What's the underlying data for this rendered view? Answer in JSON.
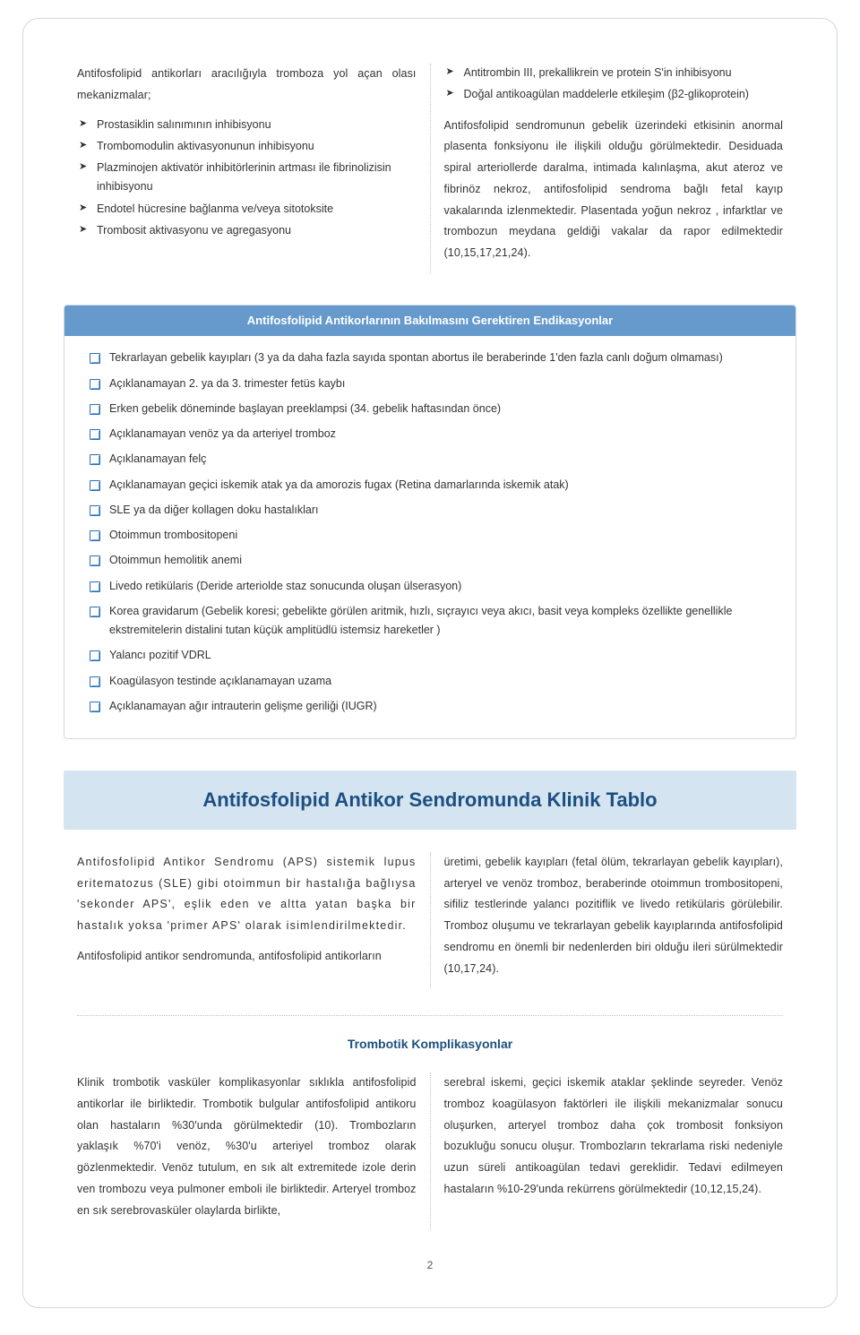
{
  "colors": {
    "border": "#cfd8e3",
    "header_bg": "#6699cc",
    "header_text": "#ffffff",
    "section_bg": "#d4e4f1",
    "section_text": "#1c4f80",
    "body_text": "#333333",
    "bullet_border": "#2a6fb5"
  },
  "top": {
    "left": {
      "intro": "Antifosfolipid antikorları aracılığıyla tromboza yol açan olası mekanizmalar;",
      "items": [
        "Prostasiklin salınımının inhibisyonu",
        "Trombomodulin aktivasyonunun inhibisyonu",
        "Plazminojen aktivatör inhibitörlerinin artması ile fibrinolizisin inhibisyonu",
        "Endotel hücresine bağlanma ve/veya sitotoksite",
        "Trombosit aktivasyonu ve agregasyonu"
      ]
    },
    "right": {
      "items": [
        "Antitrombin III, prekallikrein ve protein S'in inhibisyonu",
        "Doğal antikoagülan maddelerle etkileşim (β2-glikoprotein)"
      ],
      "para": "Antifosfolipid sendromunun gebelik üzerindeki etkisinin anormal plasenta fonksiyonu ile ilişkili olduğu görülmektedir. Desiduada spiral arteriollerde daralma, intimada kalınlaşma, akut ateroz ve fibrinöz nekroz, antifosfolipid sendroma bağlı fetal kayıp vakalarında izlenmektedir. Plasentada yoğun nekroz , infarktlar ve trombozun meydana geldiği vakalar da rapor edilmektedir (10,15,17,21,24)."
    }
  },
  "box": {
    "title": "Antifosfolipid Antikorlarının Bakılmasını Gerektiren Endikasyonlar",
    "items": [
      "Tekrarlayan gebelik kayıpları (3 ya da daha fazla sayıda spontan abortus ile beraberinde 1'den fazla canlı doğum olmaması)",
      "Açıklanamayan 2. ya da 3. trimester fetüs kaybı",
      "Erken gebelik döneminde başlayan preeklampsi (34. gebelik haftasından önce)",
      "Açıklanamayan venöz ya da arteriyel tromboz",
      "Açıklanamayan felç",
      "Açıklanamayan geçici iskemik atak ya da amorozis fugax (Retina damarlarında iskemik atak)",
      "SLE ya da diğer kollagen doku hastalıkları",
      "Otoimmun trombositopeni",
      "Otoimmun hemolitik anemi",
      "Livedo retikülaris (Deride arteriolde staz sonucunda oluşan ülserasyon)",
      "Korea gravidarum (Gebelik koresi; gebelikte görülen aritmik, hızlı, sıçrayıcı veya akıcı, basit veya kompleks özellikte genellikle ekstremitelerin distalini tutan küçük amplitüdlü istemsiz hareketler )",
      "Yalancı pozitif VDRL",
      "Koagülasyon testinde açıklanamayan uzama",
      "Açıklanamayan ağır intrauterin gelişme geriliği (IUGR)"
    ]
  },
  "section": {
    "title": "Antifosfolipid Antikor Sendromunda Klinik Tablo",
    "left_p1": "Antifosfolipid Antikor Sendromu (APS) sistemik lupus eritematozus (SLE) gibi otoimmun bir hastalığa bağlıysa 'sekonder APS', eşlik eden ve altta yatan başka bir hastalık yoksa 'primer APS' olarak isimlendirilmektedir.",
    "left_p2": "Antifosfolipid antikor sendromunda, antifosfolipid antikorların",
    "right_p1": "üretimi, gebelik kayıpları (fetal ölüm, tekrarlayan gebelik kayıpları), arteryel ve venöz tromboz, beraberinde otoimmun trombositopeni, sifiliz testlerinde yalancı pozitiflik ve livedo retikülaris görülebilir. Tromboz oluşumu ve tekrarlayan gebelik kayıplarında antifosfolipid sendromu en önemli bir nedenlerden biri olduğu ileri sürülmektedir (10,17,24)."
  },
  "sub": {
    "title": "Trombotik Komplikasyonlar",
    "left": "Klinik trombotik vasküler komplikasyonlar sıklıkla antifosfolipid antikorlar ile birliktedir. Trombotik bulgular antifosfolipid antikoru olan hastaların %30'unda görülmektedir (10). Trombozların yaklaşık %70'i venöz, %30'u arteriyel tromboz olarak gözlenmektedir. Venöz tutulum, en sık alt extremitede izole derin ven trombozu veya pulmoner emboli ile birliktedir. Arteryel tromboz en sık serebrovasküler olaylarda birlikte,",
    "right": "serebral iskemi, geçici iskemik ataklar şeklinde seyreder. Venöz tromboz koagülasyon faktörleri ile ilişkili mekanizmalar sonucu oluşurken, arteryel tromboz daha çok trombosit fonksiyon bozukluğu sonucu oluşur. Trombozların tekrarlama riski nedeniyle uzun süreli antikoagülan tedavi gereklidir. Tedavi edilmeyen hastaların %10-29'unda rekürrens görülmektedir (10,12,15,24)."
  },
  "page_number": "2"
}
